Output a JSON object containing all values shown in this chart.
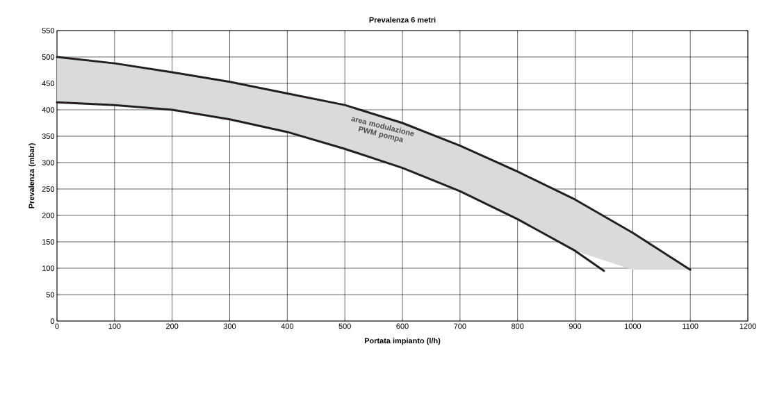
{
  "chart_data": {
    "type": "line",
    "title": "Prevalenza 6 metri",
    "xlabel": "Portata impianto (l/h)",
    "ylabel": "Prevalenza (mbar)",
    "xlim": [
      0,
      1200
    ],
    "xticks": [
      0,
      100,
      200,
      300,
      400,
      500,
      600,
      700,
      800,
      900,
      1000,
      1100,
      1200
    ],
    "ylim": [
      0,
      550
    ],
    "yticks": [
      0,
      50,
      100,
      150,
      200,
      250,
      300,
      350,
      400,
      450,
      500,
      550
    ],
    "grid": true,
    "series": [
      {
        "color": "#231f20",
        "x": [
          0,
          100,
          200,
          300,
          400,
          500,
          600,
          700,
          800,
          900,
          1000,
          1100
        ],
        "values": [
          500,
          488,
          471,
          453,
          431,
          409,
          375,
          332,
          283,
          230,
          167,
          97
        ],
        "lower": [
          414,
          409,
          400,
          382,
          358,
          326,
          290,
          246,
          193,
          133,
          97,
          97
        ],
        "upper": [
          500,
          488,
          471,
          453,
          431,
          409,
          375,
          332,
          283,
          230,
          167,
          97
        ]
      },
      {
        "color": "#231f20",
        "x": [
          0,
          100,
          200,
          300,
          400,
          500,
          600,
          700,
          800,
          900,
          950
        ],
        "values": [
          414,
          409,
          400,
          382,
          358,
          326,
          290,
          246,
          193,
          133,
          95
        ]
      }
    ],
    "annotations": [
      "area modulazione PWM pompa"
    ]
  }
}
